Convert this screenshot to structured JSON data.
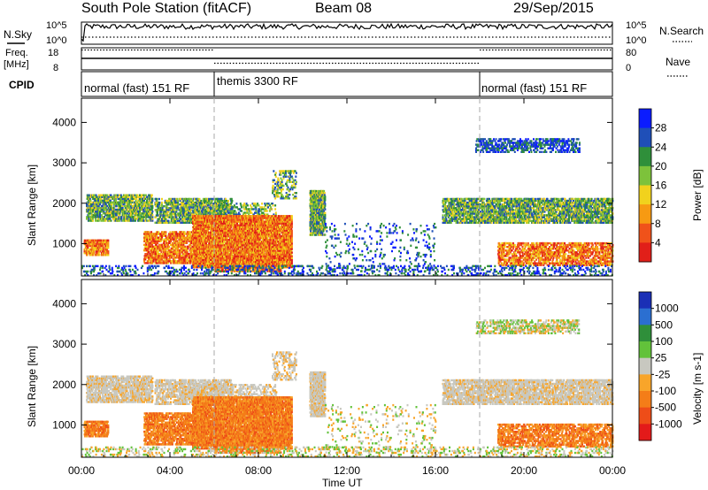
{
  "header": {
    "station": "South Pole Station (fitACF)",
    "beam": "Beam 08",
    "date": "29/Sep/2015"
  },
  "chart_data": [
    {
      "panel": "noise",
      "type": "line",
      "left_label": "N.Sky",
      "right_label": "N.Search",
      "left_ticks": [
        "10^5",
        "10^0"
      ],
      "right_ticks": [
        "10^5",
        "10^0"
      ]
    },
    {
      "panel": "freq_nave",
      "type": "line",
      "left_label_lines": [
        "Freq.",
        "[MHz]"
      ],
      "right_label": "Nave",
      "left_ticks": [
        "18",
        "8"
      ],
      "right_ticks": [
        "80",
        "0"
      ],
      "freq_mhz": [
        {
          "from_hour": 0,
          "to_hour": 6,
          "value": 17
        },
        {
          "from_hour": 6,
          "to_hour": 18,
          "value": 11
        },
        {
          "from_hour": 18,
          "to_hour": 24,
          "value": 17
        }
      ]
    },
    {
      "panel": "cpid",
      "type": "table",
      "label": "CPID",
      "segments": [
        {
          "from_hour": 0,
          "to_hour": 6,
          "name": "normal (fast) 151 RF"
        },
        {
          "from_hour": 6,
          "to_hour": 18,
          "name": "themis 3300 RF"
        },
        {
          "from_hour": 18,
          "to_hour": 24,
          "name": "normal (fast) 151 RF"
        }
      ]
    },
    {
      "panel": "power",
      "type": "heatmap",
      "ylabel": "Slant Range [km]",
      "ylim": [
        200,
        4600
      ],
      "yticks": [
        "1000",
        "2000",
        "3000",
        "4000"
      ],
      "colorbar_label": "Power [dB]",
      "colorbar_ticks": [
        "28",
        "24",
        "20",
        "16",
        "12",
        "8",
        "4"
      ],
      "colors": [
        "#0b1cff",
        "#1f4fb8",
        "#2f8f3a",
        "#7dc23b",
        "#f1d21d",
        "#f79a12",
        "#f0521a",
        "#e11f19"
      ]
    },
    {
      "panel": "velocity",
      "type": "heatmap",
      "ylabel": "Slant Range [km]",
      "ylim": [
        200,
        4600
      ],
      "yticks": [
        "1000",
        "2000",
        "3000",
        "4000"
      ],
      "colorbar_label": "Velocity [m s-1]",
      "colorbar_ticks": [
        "1000",
        "500",
        "100",
        "25",
        "-25",
        "-100",
        "-500",
        "-1000"
      ],
      "colors": [
        "#1a2fb6",
        "#2b6fd1",
        "#2f8f3a",
        "#62c23a",
        "#c8c8c0",
        "#f8a52a",
        "#f47d18",
        "#ee4d18",
        "#e31a1a"
      ]
    }
  ],
  "xaxis": {
    "label": "Time UT",
    "ticks": [
      "00:00",
      "04:00",
      "08:00",
      "12:00",
      "16:00",
      "20:00",
      "00:00"
    ],
    "range_hours": [
      0,
      24
    ]
  }
}
